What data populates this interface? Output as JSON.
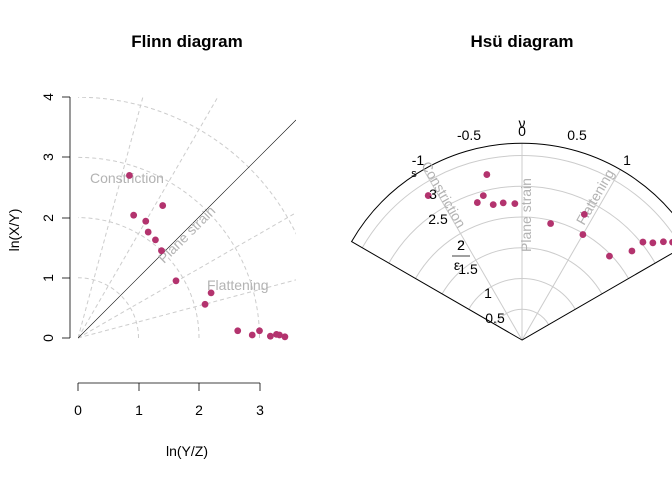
{
  "colors": {
    "point": "#b3336e",
    "guide": "#cccccc",
    "axis": "#000000",
    "label": "#b3b3b3"
  },
  "chart_data": [
    {
      "type": "scatter",
      "title": "Flinn diagram",
      "xlabel": "ln(Y/Z)",
      "ylabel": "ln(X/Y)",
      "xlim": [
        -0.0,
        3.6
      ],
      "ylim": [
        -0.8,
        4.0
      ],
      "xticks": [
        "0",
        "1",
        "2",
        "3"
      ],
      "yticks": [
        "0",
        "1",
        "2",
        "3",
        "4"
      ],
      "guide_labels": {
        "constriction": "Constriction",
        "plane_strain": "Plane strain",
        "flattening": "Flattening"
      },
      "points": [
        [
          0.85,
          2.7
        ],
        [
          0.92,
          2.04
        ],
        [
          1.12,
          1.94
        ],
        [
          1.16,
          1.76
        ],
        [
          1.28,
          1.63
        ],
        [
          1.38,
          1.45
        ],
        [
          1.4,
          2.2
        ],
        [
          1.62,
          0.95
        ],
        [
          2.1,
          0.56
        ],
        [
          2.2,
          0.75
        ],
        [
          2.64,
          0.12
        ],
        [
          2.88,
          0.05
        ],
        [
          3.0,
          0.12
        ],
        [
          3.18,
          0.03
        ],
        [
          3.28,
          0.06
        ],
        [
          3.33,
          0.05
        ],
        [
          3.42,
          0.02
        ]
      ]
    },
    {
      "type": "scatter",
      "title": "Hsü diagram",
      "guide_labels": {
        "constriction": "Constriction",
        "plane_strain": "Plane strain",
        "flattening": "Flattening"
      },
      "lode_label": "ν",
      "lode_ticks": [
        "-1",
        "-0.5",
        "0",
        "0.5",
        "1"
      ],
      "strain_label_top": "2",
      "strain_label_bottom": "ε",
      "strain_sub": "s",
      "strain_ticks": [
        "0.5",
        "1",
        "1.5",
        "2",
        "2.5",
        "3"
      ],
      "points": [
        [
          -0.55,
          2.8
        ],
        [
          -0.2,
          2.75
        ],
        [
          -0.3,
          2.35
        ],
        [
          -0.25,
          2.43
        ],
        [
          -0.2,
          2.25
        ],
        [
          -0.13,
          2.25
        ],
        [
          -0.05,
          2.22
        ],
        [
          0.23,
          1.95
        ],
        [
          0.44,
          2.28
        ],
        [
          0.5,
          1.98
        ],
        [
          0.77,
          1.97
        ],
        [
          0.85,
          2.3
        ],
        [
          0.85,
          2.53
        ],
        [
          0.89,
          2.65
        ],
        [
          0.92,
          2.8
        ],
        [
          0.95,
          2.92
        ],
        [
          0.97,
          3.0
        ]
      ]
    }
  ]
}
